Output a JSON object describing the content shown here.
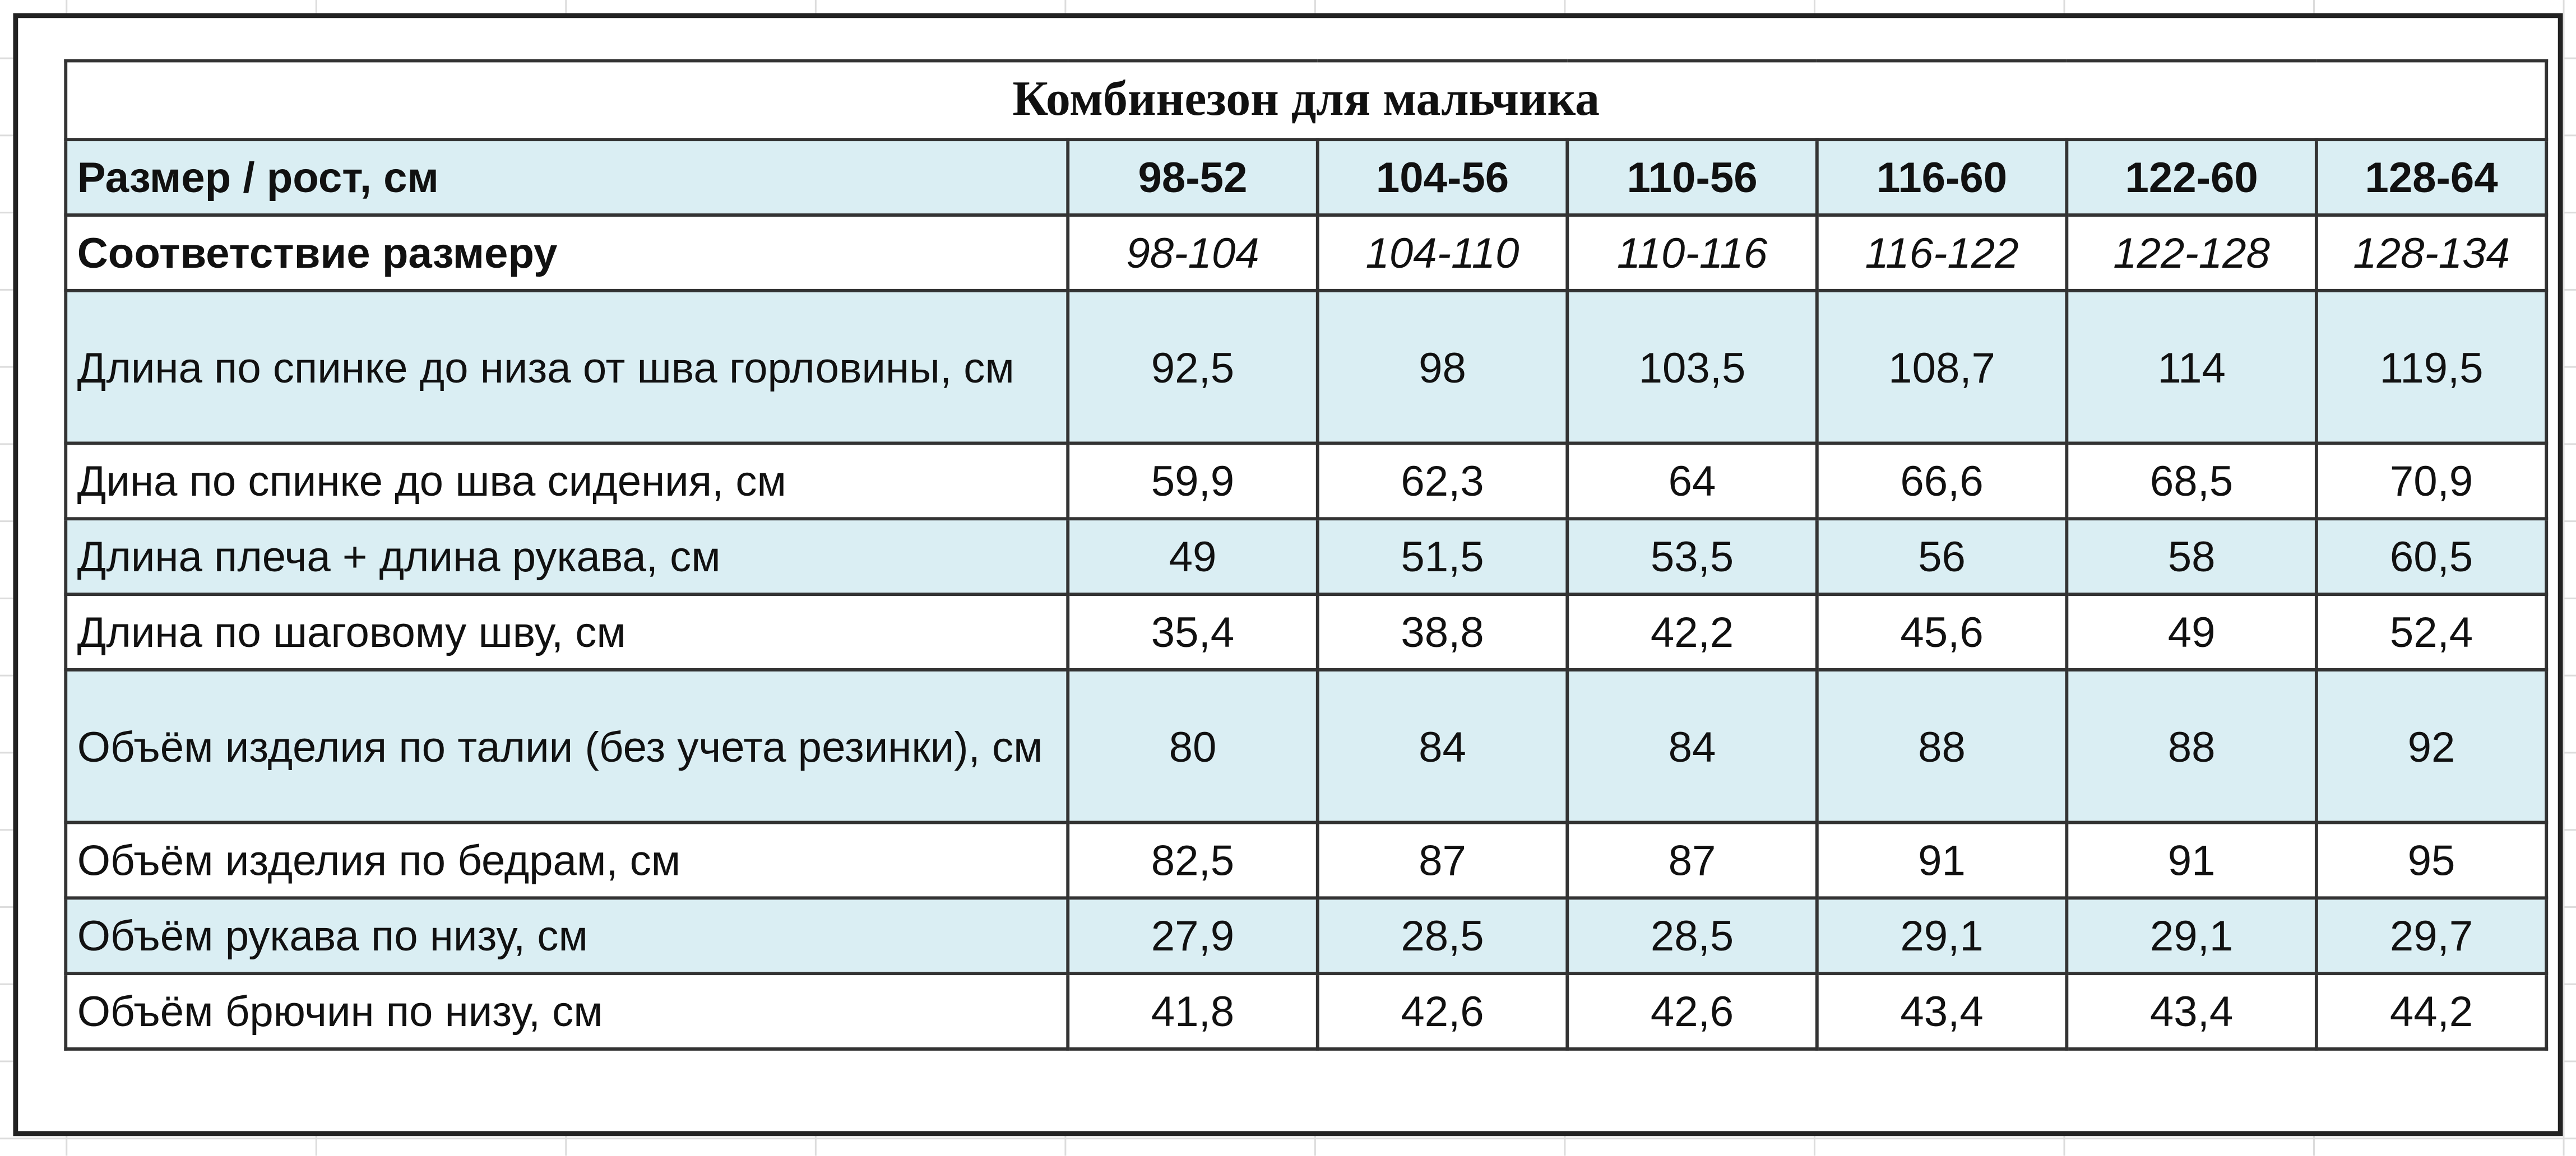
{
  "title": "Комбинезон для мальчика",
  "header": {
    "label": "Размер / рост, см",
    "sizes": [
      "98-52",
      "104-56",
      "110-56",
      "116-60",
      "122-60",
      "128-64"
    ]
  },
  "correspondence": {
    "label": "Соответствие размеру",
    "values": [
      "98-104",
      "104-110",
      "110-116",
      "116-122",
      "122-128",
      "128-134"
    ]
  },
  "rows": [
    {
      "label": "Длина по спинке до низа от шва горловины, см",
      "values": [
        "92,5",
        "98",
        "103,5",
        "108,7",
        "114",
        "119,5"
      ]
    },
    {
      "label": "Дина по спинке до шва сидения, см",
      "values": [
        "59,9",
        "62,3",
        "64",
        "66,6",
        "68,5",
        "70,9"
      ]
    },
    {
      "label": "Длина плеча + длина рукава, см",
      "values": [
        "49",
        "51,5",
        "53,5",
        "56",
        "58",
        "60,5"
      ]
    },
    {
      "label": "Длина по шаговому шву, см",
      "values": [
        "35,4",
        "38,8",
        "42,2",
        "45,6",
        "49",
        "52,4"
      ]
    },
    {
      "label": "Объём изделия по талии (без учета резинки), см",
      "values": [
        "80",
        "84",
        "84",
        "88",
        "88",
        "92"
      ]
    },
    {
      "label": "Объём изделия по бедрам, см",
      "values": [
        "82,5",
        "87",
        "87",
        "91",
        "91",
        "95"
      ]
    },
    {
      "label": "Объём рукава по низу, см",
      "values": [
        "27,9",
        "28,5",
        "28,5",
        "29,1",
        "29,1",
        "29,7"
      ]
    },
    {
      "label": "Объём брючин по низу, см",
      "values": [
        "41,8",
        "42,6",
        "42,6",
        "43,4",
        "43,4",
        "44,2"
      ]
    }
  ]
}
